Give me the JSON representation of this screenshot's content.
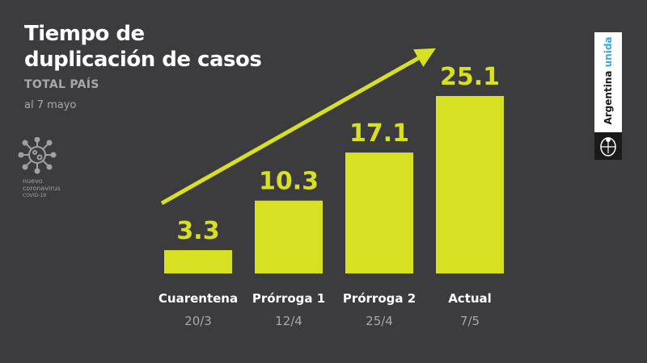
{
  "header": {
    "title_line1": "Tiempo de",
    "title_line2": "duplicación de casos",
    "subtitle": "TOTAL PAÍS",
    "date": "al 7 mayo"
  },
  "virus_logo": {
    "icon": "virus-icon",
    "line1": "nuevo",
    "line2": "coronavirus",
    "line3": "COVID-19"
  },
  "gov_badge": {
    "word1": "Argentina",
    "word2": "unida",
    "crest_icon": "argentina-crest-icon"
  },
  "colors": {
    "background": "#3c3c3e",
    "bar": "#d7e021",
    "accent": "#36a9e1"
  },
  "chart_data": {
    "type": "bar",
    "categories": [
      "Cuarentena",
      "Prórroga 1",
      "Prórroga 2",
      "Actual"
    ],
    "category_dates": [
      "20/3",
      "12/4",
      "25/4",
      "7/5"
    ],
    "values": [
      3.3,
      10.3,
      17.1,
      25.1
    ],
    "value_labels": [
      "3.3",
      "10.3",
      "17.1",
      "25.1"
    ],
    "title": "Tiempo de duplicación de casos",
    "subtitle": "TOTAL PAÍS",
    "ylim": [
      0,
      25.1
    ],
    "grid": false,
    "legend": "none",
    "annotations": [
      "upward-trend-arrow"
    ]
  }
}
